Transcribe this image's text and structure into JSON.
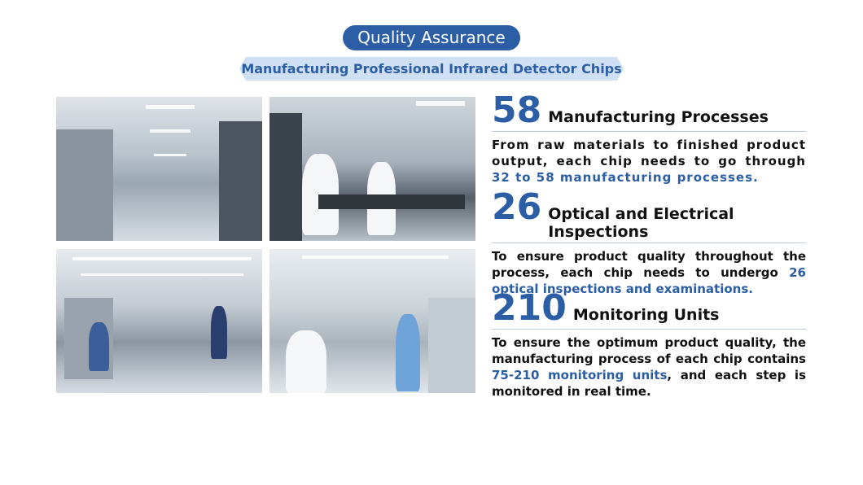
{
  "header": {
    "title": "Quality Assurance",
    "subtitle": "Manufacturing Professional Infrared Detector Chips"
  },
  "photos": [
    "cleanroom-corridor",
    "cleanroom-workstations",
    "cleanroom-hall",
    "cleanroom-equipment"
  ],
  "sections": [
    {
      "number": "58",
      "title": "Manufacturing Processes",
      "text_before": "From raw materials to finished product output, each chip needs to go through ",
      "highlight": "32 to 58 manufacturing processes.",
      "text_after": ""
    },
    {
      "number": "26",
      "title": "Optical and Electrical Inspections",
      "text_before": "To ensure product quality throughout the process, each chip needs to undergo ",
      "highlight": "26 optical inspections and examinations.",
      "text_after": ""
    },
    {
      "number": "210",
      "title": "Monitoring Units",
      "text_before": "To ensure the optimum product quality, the manufacturing process of each chip contains ",
      "highlight": "75-210 monitoring units",
      "text_after": ", and each step is monitored in real time."
    }
  ],
  "colors": {
    "accent": "#2b5ea5",
    "banner_bg": "#cfe0f4"
  }
}
